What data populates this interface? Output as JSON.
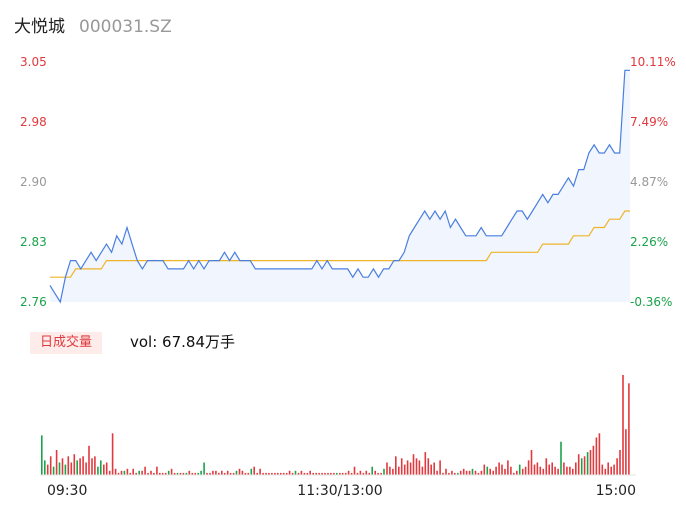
{
  "stock": {
    "name": "大悦城",
    "code": "000031.SZ"
  },
  "volume_panel": {
    "tab_label": "日成交量",
    "volume_text": "vol: 67.84万手"
  },
  "colors": {
    "up": "#e0393e",
    "down": "#1aa34a",
    "price_line": "#4a7fe0",
    "avg_line": "#f0b429",
    "neutral": "#999999"
  },
  "chart_data": [
    {
      "type": "line",
      "series": [
        {
          "values": [
            2.78,
            2.77,
            2.76,
            2.79,
            2.81,
            2.81,
            2.8,
            2.81,
            2.82,
            2.81,
            2.82,
            2.83,
            2.82,
            2.84,
            2.83,
            2.85,
            2.83,
            2.81,
            2.8,
            2.81,
            2.81,
            2.81,
            2.81,
            2.8,
            2.8,
            2.8,
            2.8,
            2.81,
            2.8,
            2.81,
            2.8,
            2.81,
            2.81,
            2.81,
            2.82,
            2.81,
            2.82,
            2.81,
            2.81,
            2.81,
            2.8,
            2.8,
            2.8,
            2.8,
            2.8,
            2.8,
            2.8,
            2.8,
            2.8,
            2.8,
            2.8,
            2.8,
            2.81,
            2.8,
            2.81,
            2.8,
            2.8,
            2.8,
            2.8,
            2.79,
            2.8,
            2.79,
            2.79,
            2.8,
            2.79,
            2.8,
            2.8,
            2.81,
            2.81,
            2.82,
            2.84,
            2.85,
            2.86,
            2.87,
            2.86,
            2.87,
            2.86,
            2.87,
            2.85,
            2.86,
            2.85,
            2.84,
            2.84,
            2.84,
            2.85,
            2.84,
            2.84,
            2.84,
            2.84,
            2.85,
            2.86,
            2.87,
            2.87,
            2.86,
            2.87,
            2.88,
            2.89,
            2.88,
            2.89,
            2.89,
            2.9,
            2.91,
            2.9,
            2.92,
            2.92,
            2.94,
            2.95,
            2.94,
            2.94,
            2.95,
            2.94,
            2.94,
            3.04,
            3.04
          ]
        },
        {
          "values": [
            2.79,
            2.79,
            2.79,
            2.79,
            2.79,
            2.8,
            2.8,
            2.8,
            2.8,
            2.8,
            2.8,
            2.81,
            2.81,
            2.81,
            2.81,
            2.81,
            2.81,
            2.81,
            2.81,
            2.81,
            2.81,
            2.81,
            2.81,
            2.81,
            2.81,
            2.81,
            2.81,
            2.81,
            2.81,
            2.81,
            2.81,
            2.81,
            2.81,
            2.81,
            2.81,
            2.81,
            2.81,
            2.81,
            2.81,
            2.81,
            2.81,
            2.81,
            2.81,
            2.81,
            2.81,
            2.81,
            2.81,
            2.81,
            2.81,
            2.81,
            2.81,
            2.81,
            2.81,
            2.81,
            2.81,
            2.81,
            2.81,
            2.81,
            2.81,
            2.81,
            2.81,
            2.81,
            2.81,
            2.81,
            2.81,
            2.81,
            2.81,
            2.81,
            2.81,
            2.81,
            2.81,
            2.81,
            2.81,
            2.81,
            2.81,
            2.81,
            2.81,
            2.81,
            2.81,
            2.81,
            2.81,
            2.81,
            2.81,
            2.81,
            2.81,
            2.81,
            2.82,
            2.82,
            2.82,
            2.82,
            2.82,
            2.82,
            2.82,
            2.82,
            2.82,
            2.82,
            2.83,
            2.83,
            2.83,
            2.83,
            2.83,
            2.83,
            2.84,
            2.84,
            2.84,
            2.84,
            2.85,
            2.85,
            2.85,
            2.86,
            2.86,
            2.86,
            2.87,
            2.87
          ]
        }
      ],
      "y_left_ticks": [
        "3.05",
        "2.98",
        "2.90",
        "2.83",
        "2.76"
      ],
      "y_right_ticks": [
        "10.11%",
        "7.49%",
        "4.87%",
        "2.26%",
        "-0.36%"
      ],
      "ylim": [
        2.76,
        3.05
      ],
      "x_ticks": [
        "09:30",
        "11:30/13:00",
        "15:00"
      ]
    },
    {
      "type": "bar",
      "values": [
        38,
        14,
        10,
        18,
        8,
        24,
        12,
        16,
        10,
        18,
        12,
        20,
        14,
        16,
        18,
        12,
        28,
        16,
        18,
        8,
        14,
        10,
        12,
        4,
        40,
        6,
        2,
        4,
        4,
        6,
        2,
        6,
        2,
        4,
        4,
        8,
        2,
        4,
        2,
        8,
        2,
        2,
        2,
        4,
        6,
        2,
        2,
        2,
        2,
        2,
        4,
        2,
        2,
        2,
        4,
        12,
        2,
        2,
        4,
        4,
        2,
        4,
        2,
        4,
        2,
        2,
        4,
        6,
        4,
        2,
        2,
        6,
        8,
        2,
        6,
        2,
        2,
        2,
        2,
        2,
        2,
        2,
        2,
        2,
        4,
        2,
        4,
        2,
        4,
        2,
        2,
        4,
        2,
        2,
        2,
        2,
        2,
        2,
        2,
        2,
        2,
        2,
        2,
        2,
        4,
        2,
        8,
        2,
        4,
        2,
        4,
        2,
        8,
        4,
        2,
        2,
        6,
        12,
        8,
        6,
        18,
        8,
        16,
        10,
        14,
        12,
        20,
        16,
        14,
        8,
        22,
        16,
        10,
        12,
        4,
        14,
        2,
        6,
        2,
        4,
        2,
        2,
        4,
        6,
        4,
        4,
        6,
        4,
        2,
        4,
        10,
        8,
        6,
        4,
        8,
        12,
        10,
        6,
        14,
        8,
        2,
        4,
        10,
        6,
        8,
        14,
        24,
        10,
        12,
        8,
        6,
        16,
        10,
        12,
        8,
        6,
        32,
        12,
        8,
        8,
        6,
        12,
        20,
        16,
        18,
        22,
        24,
        28,
        36,
        40,
        10,
        6,
        12,
        8,
        10,
        16,
        24,
        96,
        44,
        88
      ],
      "colors": [
        "down",
        "down",
        "up",
        "up",
        "down",
        "up",
        "down",
        "up",
        "down",
        "up",
        "up",
        "up",
        "down",
        "up",
        "up",
        "up",
        "up",
        "up",
        "up",
        "down",
        "down",
        "up",
        "up",
        "up",
        "up",
        "up",
        "up",
        "up",
        "down",
        "up",
        "up",
        "up",
        "up",
        "down",
        "up",
        "up",
        "up",
        "up",
        "up",
        "up",
        "up",
        "up",
        "up",
        "down",
        "up",
        "up",
        "down",
        "up",
        "up",
        "down",
        "up",
        "up",
        "up",
        "down",
        "down",
        "down",
        "up",
        "up",
        "up",
        "up",
        "up",
        "up",
        "up",
        "up",
        "up",
        "up",
        "down",
        "up",
        "up",
        "up",
        "up",
        "down",
        "up",
        "up",
        "up",
        "up",
        "up",
        "up",
        "up",
        "up",
        "up",
        "up",
        "up",
        "up",
        "up",
        "up",
        "down",
        "up",
        "up",
        "up",
        "up",
        "up",
        "up",
        "up",
        "up",
        "up",
        "up",
        "up",
        "up",
        "up",
        "down",
        "up",
        "up",
        "up",
        "up",
        "up",
        "up",
        "up",
        "up",
        "up",
        "up",
        "up",
        "down",
        "up",
        "up",
        "up",
        "down",
        "up",
        "up",
        "up",
        "up",
        "up",
        "up",
        "up",
        "up",
        "up",
        "up",
        "up",
        "up",
        "up",
        "up",
        "up",
        "up",
        "up",
        "up",
        "up",
        "up",
        "up",
        "up",
        "up",
        "up",
        "down",
        "up",
        "up",
        "up",
        "up",
        "down",
        "up",
        "up",
        "up",
        "up",
        "down",
        "up",
        "up",
        "up",
        "up",
        "up",
        "up",
        "up",
        "up",
        "up",
        "up",
        "down",
        "up",
        "up",
        "up",
        "up",
        "up",
        "up",
        "up",
        "up",
        "up",
        "up",
        "up",
        "up",
        "up",
        "down",
        "up",
        "up",
        "up",
        "up",
        "up",
        "up",
        "down",
        "up",
        "down",
        "up",
        "up",
        "up",
        "up",
        "up",
        "up",
        "up",
        "up",
        "up",
        "up",
        "up",
        "up",
        "up",
        "up",
        "up",
        "up",
        "up",
        "up"
      ]
    }
  ]
}
